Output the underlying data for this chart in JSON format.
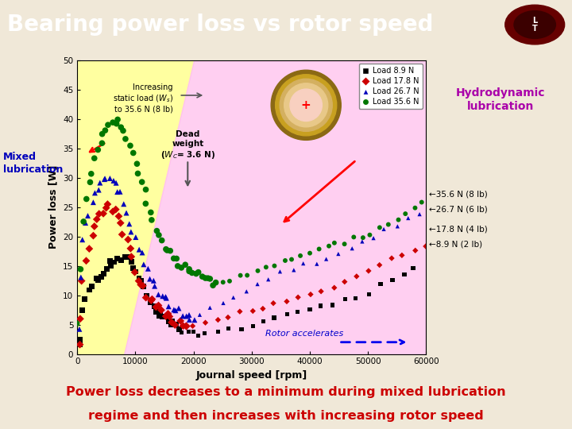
{
  "title": "Bearing power loss vs rotor speed",
  "title_bg": "#8B0000",
  "title_color": "#FFFFFF",
  "bg_color": "#F0E8D8",
  "plot_bg": "#FFFFFF",
  "xlabel": "Journal speed [rpm]",
  "ylabel": "Power loss [W]",
  "xlim": [
    0,
    60000
  ],
  "ylim": [
    0,
    50
  ],
  "xticks": [
    0,
    10000,
    20000,
    30000,
    40000,
    50000,
    60000
  ],
  "yticks": [
    0,
    5,
    10,
    15,
    20,
    25,
    30,
    35,
    40,
    45,
    50
  ],
  "series": {
    "load_8_9": {
      "color": "#000000",
      "marker": "s",
      "label": "Load 8.9 N",
      "mixed_x": [
        200,
        500,
        1000,
        1500,
        2000,
        2500,
        3000,
        3500,
        4000,
        4500,
        5000,
        5500,
        6000,
        6500,
        7000,
        7500,
        8000,
        8500,
        9000,
        9500,
        10000,
        10500,
        11000,
        11500,
        12000,
        12500,
        13000,
        13500,
        14000,
        14500,
        15000,
        15500,
        16000,
        16500,
        17000,
        17500
      ],
      "mixed_y": [
        1.5,
        3,
        7,
        9,
        10.5,
        11.5,
        12.5,
        13,
        13.5,
        14,
        14.5,
        15,
        15.5,
        16,
        16.2,
        16.3,
        16.2,
        16,
        15.5,
        15,
        14,
        13,
        12,
        11,
        10,
        9,
        8,
        7.5,
        7,
        6.5,
        6,
        5.5,
        5,
        4.8,
        4.5,
        4.2
      ],
      "hydro_x": [
        18000,
        19000,
        20000,
        21000,
        22000,
        24000,
        26000,
        28000,
        30000,
        32000,
        34000,
        36000,
        38000,
        40000,
        42000,
        44000,
        46000,
        48000,
        50000,
        52000,
        54000,
        56000,
        58000,
        60000
      ],
      "hydro_y": [
        3.8,
        3.5,
        3.5,
        3.5,
        3.8,
        4,
        4.2,
        4.5,
        5,
        5.5,
        6,
        6.5,
        7,
        7.5,
        8,
        8.5,
        9,
        9.5,
        10.5,
        11.5,
        12.5,
        13.5,
        14.5,
        15.5
      ]
    },
    "load_17_8": {
      "color": "#CC0000",
      "marker": "D",
      "label": "Load 17.8 N",
      "mixed_x": [
        200,
        500,
        1000,
        1500,
        2000,
        2500,
        3000,
        3500,
        4000,
        4500,
        5000,
        5500,
        6000,
        6500,
        7000,
        7500,
        8000,
        8500,
        9000,
        9500,
        10000,
        10500,
        11000,
        11500,
        12000,
        12500,
        13000,
        13500,
        14000,
        14500,
        15000,
        15500,
        16000,
        16500,
        17000,
        17500,
        18000,
        18500,
        19000
      ],
      "mixed_y": [
        1.5,
        6,
        13,
        16,
        18,
        20,
        21.5,
        22.5,
        23.5,
        24,
        24.5,
        25,
        24.5,
        24,
        23,
        22,
        20.5,
        19,
        17.5,
        16,
        14.5,
        13,
        12,
        11,
        10,
        9.5,
        9,
        8.5,
        8,
        7.5,
        7,
        6.5,
        6,
        5.8,
        5.5,
        5.3,
        5.1,
        5,
        4.8
      ],
      "hydro_x": [
        20000,
        22000,
        24000,
        26000,
        28000,
        30000,
        32000,
        34000,
        36000,
        38000,
        40000,
        42000,
        44000,
        46000,
        48000,
        50000,
        52000,
        54000,
        56000,
        58000,
        60000
      ],
      "hydro_y": [
        5,
        5.5,
        6,
        6.5,
        7,
        7.5,
        8,
        8.5,
        9,
        9.5,
        10,
        10.8,
        11.5,
        12.5,
        13.5,
        14.5,
        15.5,
        16.5,
        17,
        17.5,
        18
      ]
    },
    "load_26_7": {
      "color": "#0000BB",
      "marker": "^",
      "label": "Load 26.7 N",
      "mixed_x": [
        200,
        500,
        1000,
        1500,
        2000,
        2500,
        3000,
        3500,
        4000,
        4500,
        5000,
        5500,
        6000,
        6500,
        7000,
        7500,
        8000,
        8500,
        9000,
        9500,
        10000,
        10500,
        11000,
        11500,
        12000,
        12500,
        13000,
        13500,
        14000,
        14500,
        15000,
        15500,
        16000,
        16500,
        17000,
        17500,
        18000,
        18500,
        19000,
        19500,
        20000
      ],
      "mixed_y": [
        4,
        13,
        19,
        22,
        24,
        26,
        27.5,
        28.5,
        29,
        29.5,
        30,
        30,
        29.5,
        29,
        28,
        27,
        25.5,
        24,
        22.5,
        21,
        19.5,
        18,
        17,
        15.5,
        14,
        13,
        12,
        11,
        10.5,
        10,
        9.5,
        9,
        8.5,
        8,
        7.5,
        7.2,
        7,
        6.8,
        6.5,
        6.3,
        6
      ],
      "hydro_x": [
        21000,
        23000,
        25000,
        27000,
        29000,
        31000,
        33000,
        35000,
        37000,
        39000,
        41000,
        43000,
        45000,
        47000,
        49000,
        51000,
        53000,
        55000,
        57000,
        59000
      ],
      "hydro_y": [
        7,
        8,
        9,
        10,
        11,
        12,
        13,
        14,
        14.5,
        15,
        15.5,
        16,
        17,
        18,
        19,
        20,
        21,
        22,
        23,
        24
      ]
    },
    "load_35_6": {
      "color": "#007700",
      "marker": "o",
      "label": "Load 35.6 N",
      "mixed_x": [
        200,
        500,
        1000,
        1500,
        2000,
        2500,
        3000,
        3500,
        4000,
        4500,
        5000,
        5500,
        6000,
        6500,
        7000,
        7500,
        8000,
        8500,
        9000,
        9500,
        10000,
        10500,
        11000,
        11500,
        12000,
        12500,
        13000,
        13500,
        14000,
        14500,
        15000,
        15500,
        16000,
        16500,
        17000,
        17500,
        18000,
        18500,
        19000,
        19500,
        20000,
        20500,
        21000,
        21500,
        22000,
        22500,
        23000,
        23500,
        24000
      ],
      "mixed_y": [
        5,
        14,
        22,
        26,
        29,
        31,
        33,
        34.5,
        36,
        37,
        38,
        38.5,
        39,
        39.5,
        39.5,
        39,
        38,
        37,
        35.5,
        34,
        32,
        30.5,
        29,
        27.5,
        26,
        24.5,
        23,
        21.5,
        20,
        19,
        18,
        17.5,
        17,
        16.5,
        16,
        15.5,
        15.2,
        14.8,
        14.5,
        14.2,
        14,
        13.7,
        13.5,
        13.2,
        13,
        12.8,
        12.5,
        12.2,
        12
      ],
      "hydro_x": [
        25000,
        26500,
        28000,
        29500,
        31000,
        32500,
        34000,
        35500,
        37000,
        38500,
        40000,
        41500,
        43000,
        44500,
        46000,
        47500,
        49000,
        50500,
        52000,
        53500,
        55000,
        56500,
        58000,
        59500
      ],
      "hydro_y": [
        12,
        12.5,
        13,
        13.5,
        14,
        14.5,
        15,
        15.5,
        16,
        16.5,
        17,
        17.5,
        18,
        18.5,
        19,
        19.5,
        20,
        20.5,
        21.5,
        22,
        23,
        24,
        25,
        26
      ]
    }
  },
  "bottom_text_line1": "Power loss decreases to a minimum during mixed lubrication",
  "bottom_text_line2": "regime and then increases with increasing rotor speed",
  "bottom_bg": "#7FFFD4",
  "bottom_text_color": "#CC0000",
  "mixed_label_color": "#0000BB",
  "hydro_label_bg": "#FF80C0",
  "hydro_label_color": "#AA00AA",
  "annotation_35_6": "35.6 N (8 lb)",
  "annotation_26_7": "26.7 N (6 lb)",
  "annotation_17_8": "17.8 N (4 lb)",
  "annotation_8_9": "8.9 N (2 lb)"
}
